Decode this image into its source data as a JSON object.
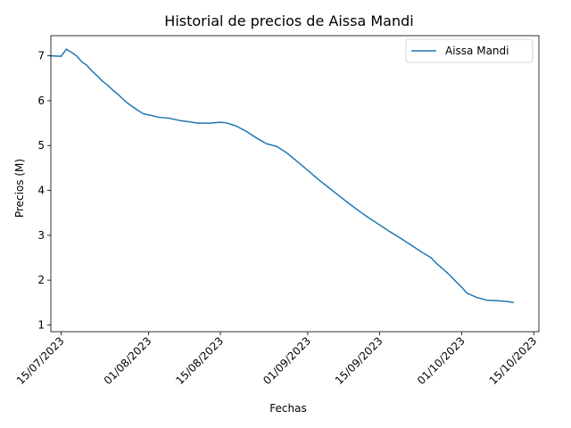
{
  "chart_data": {
    "type": "line",
    "title": "Historial de precios de Aissa Mandi",
    "xlabel": "Fechas",
    "ylabel": "Precios (M)",
    "xlim": [
      "2023-07-13",
      "2023-10-16"
    ],
    "ylim": [
      0.85,
      7.45
    ],
    "xticks": [
      {
        "date": "2023-07-15",
        "label": "15/07/2023"
      },
      {
        "date": "2023-08-01",
        "label": "01/08/2023"
      },
      {
        "date": "2023-08-15",
        "label": "15/08/2023"
      },
      {
        "date": "2023-09-01",
        "label": "01/09/2023"
      },
      {
        "date": "2023-09-15",
        "label": "15/09/2023"
      },
      {
        "date": "2023-10-01",
        "label": "01/10/2023"
      },
      {
        "date": "2023-10-15",
        "label": "15/10/2023"
      }
    ],
    "yticks": [
      1,
      2,
      3,
      4,
      5,
      6,
      7
    ],
    "grid": false,
    "legend": "top-right",
    "colors": {
      "series": "#1f77b4"
    },
    "series": [
      {
        "name": "Aissa Mandi",
        "x": [
          "2023-07-13",
          "2023-07-15",
          "2023-07-16",
          "2023-07-17",
          "2023-07-18",
          "2023-07-19",
          "2023-07-20",
          "2023-07-21",
          "2023-07-22",
          "2023-07-23",
          "2023-07-24",
          "2023-07-25",
          "2023-07-26",
          "2023-07-27",
          "2023-07-28",
          "2023-07-29",
          "2023-07-30",
          "2023-07-31",
          "2023-08-02",
          "2023-08-03",
          "2023-08-05",
          "2023-08-07",
          "2023-08-09",
          "2023-08-10",
          "2023-08-11",
          "2023-08-12",
          "2023-08-13",
          "2023-08-14",
          "2023-08-15",
          "2023-08-16",
          "2023-08-18",
          "2023-08-20",
          "2023-08-22",
          "2023-08-24",
          "2023-08-26",
          "2023-08-28",
          "2023-08-30",
          "2023-09-01",
          "2023-09-03",
          "2023-09-05",
          "2023-09-07",
          "2023-09-09",
          "2023-09-11",
          "2023-09-13",
          "2023-09-15",
          "2023-09-17",
          "2023-09-19",
          "2023-09-21",
          "2023-09-23",
          "2023-09-25",
          "2023-09-26",
          "2023-09-27",
          "2023-09-28",
          "2023-09-29",
          "2023-09-30",
          "2023-10-01",
          "2023-10-02",
          "2023-10-04",
          "2023-10-06",
          "2023-10-08",
          "2023-10-09",
          "2023-10-10",
          "2023-10-11"
        ],
        "y": [
          7.0,
          6.99,
          7.15,
          7.08,
          7.0,
          6.87,
          6.79,
          6.66,
          6.56,
          6.44,
          6.35,
          6.24,
          6.15,
          6.04,
          5.94,
          5.86,
          5.78,
          5.71,
          5.66,
          5.63,
          5.61,
          5.56,
          5.53,
          5.51,
          5.5,
          5.5,
          5.5,
          5.51,
          5.52,
          5.51,
          5.44,
          5.32,
          5.17,
          5.04,
          4.98,
          4.83,
          4.64,
          4.45,
          4.25,
          4.07,
          3.89,
          3.71,
          3.54,
          3.38,
          3.23,
          3.08,
          2.94,
          2.79,
          2.64,
          2.5,
          2.38,
          2.28,
          2.18,
          2.07,
          1.95,
          1.84,
          1.71,
          1.61,
          1.55,
          1.54,
          1.53,
          1.52,
          1.5
        ]
      }
    ]
  }
}
